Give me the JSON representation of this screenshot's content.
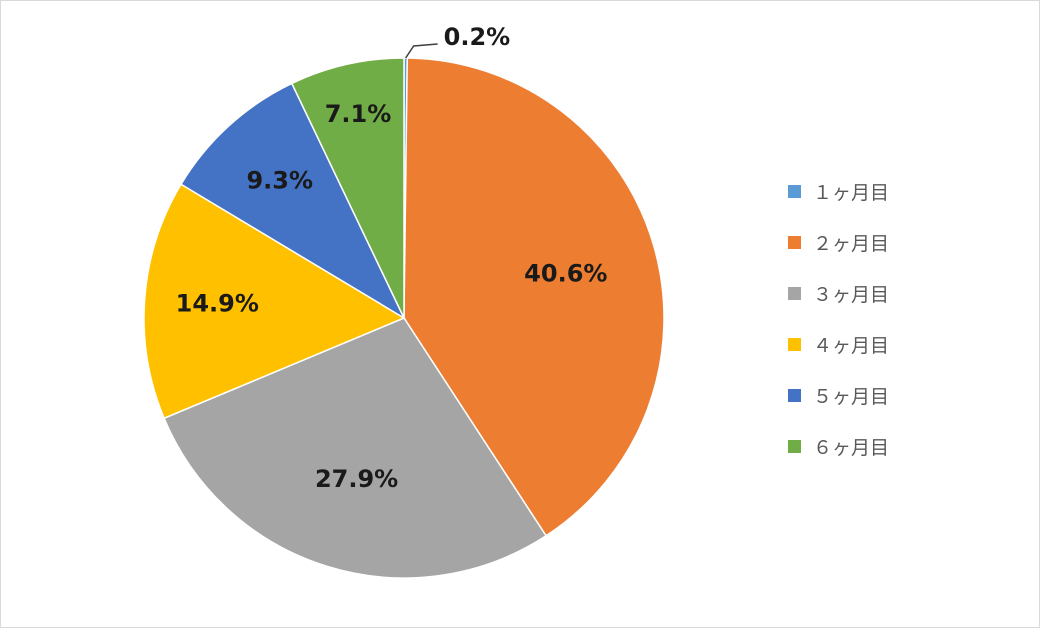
{
  "chart_data": {
    "type": "pie",
    "start_angle_deg": 0,
    "direction": "clockwise",
    "slices": [
      {
        "label": "１ヶ月目",
        "value": 0.2,
        "display": "0.2%",
        "color": "#5b9bd5"
      },
      {
        "label": "２ヶ月目",
        "value": 40.6,
        "display": "40.6%",
        "color": "#ed7d31"
      },
      {
        "label": "３ヶ月目",
        "value": 27.9,
        "display": "27.9%",
        "color": "#a5a5a5"
      },
      {
        "label": "４ヶ月目",
        "value": 14.9,
        "display": "14.9%",
        "color": "#ffc000"
      },
      {
        "label": "５ヶ月目",
        "value": 9.3,
        "display": "9.3%",
        "color": "#4472c4"
      },
      {
        "label": "６ヶ月目",
        "value": 7.1,
        "display": "7.1%",
        "color": "#70ad47"
      }
    ],
    "legend_position": "right",
    "data_labels": true
  }
}
